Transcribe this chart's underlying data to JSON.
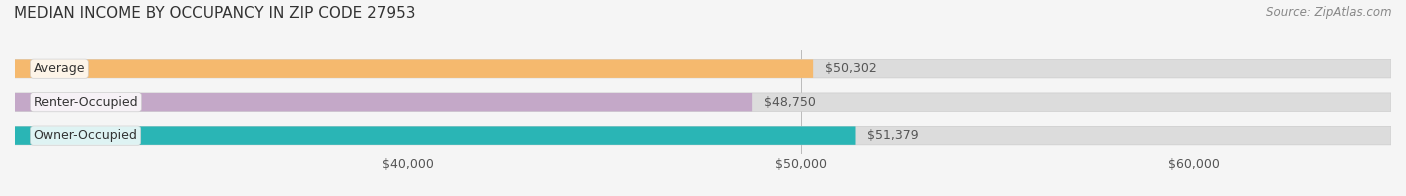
{
  "title": "MEDIAN INCOME BY OCCUPANCY IN ZIP CODE 27953",
  "source": "Source: ZipAtlas.com",
  "categories": [
    "Owner-Occupied",
    "Renter-Occupied",
    "Average"
  ],
  "values": [
    51379,
    48750,
    50302
  ],
  "bar_colors": [
    "#2ab5b5",
    "#c4a8c8",
    "#f5b96e"
  ],
  "bar_bg_color": "#e8e8e8",
  "value_labels": [
    "$51,379",
    "$48,750",
    "$50,302"
  ],
  "xlim": [
    30000,
    65000
  ],
  "xticks": [
    40000,
    50000,
    60000
  ],
  "xtick_labels": [
    "$40,000",
    "$50,000",
    "$60,000"
  ],
  "bar_height": 0.55,
  "title_fontsize": 11,
  "source_fontsize": 8.5,
  "label_fontsize": 9,
  "value_fontsize": 9,
  "tick_fontsize": 9,
  "background_color": "#f5f5f5",
  "bar_bg_alpha": 0.5
}
